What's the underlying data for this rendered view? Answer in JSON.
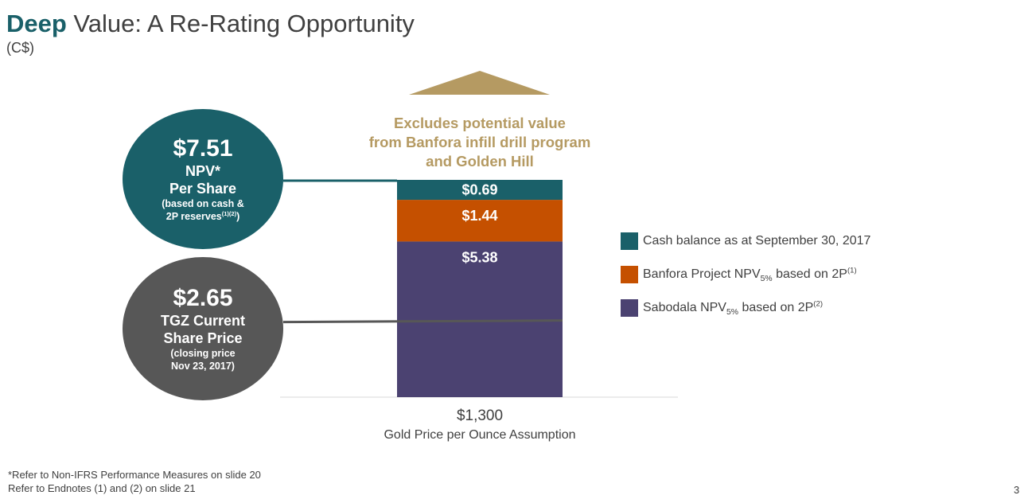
{
  "header": {
    "title_bold": "Deep",
    "title_rest": " Value: A Re-Rating Opportunity",
    "currency": "(C$)"
  },
  "npv_circle": {
    "value": "$7.51",
    "line1": "NPV*",
    "line2": "Per Share",
    "note1": "(based on cash &",
    "note2_main": "2P reserves",
    "note2_sup": "(1)(2)",
    "note2_end": ")"
  },
  "price_circle": {
    "value": "$2.65",
    "line1": "TGZ Current",
    "line2": "Share Price",
    "note1": "(closing price",
    "note2": "Nov 23, 2017)"
  },
  "callout": {
    "line1": "Excludes potential value",
    "line2": "from Banfora infill drill program",
    "line3": "and Golden Hill"
  },
  "chart_data": {
    "type": "bar",
    "stacked": true,
    "title": "",
    "categories": [
      "$1,300"
    ],
    "xlabel": "Gold Price per Ounce Assumption",
    "ylabel": "",
    "ylim": [
      0,
      7.51
    ],
    "series": [
      {
        "name": "Sabodala NPV5% based on 2P(2)",
        "values": [
          5.38
        ],
        "label": "$5.38",
        "color": "#4b4271"
      },
      {
        "name": "Banfora Project NPV5% based on 2P(1)",
        "values": [
          1.44
        ],
        "label": "$1.44",
        "color": "#c55000"
      },
      {
        "name": "Cash balance as at September 30, 2017",
        "values": [
          0.69
        ],
        "label": "$0.69",
        "color": "#1a6069"
      }
    ],
    "reference_lines": [
      {
        "name": "NPV per share",
        "value": 7.51
      },
      {
        "name": "TGZ current share price",
        "value": 2.65
      }
    ]
  },
  "legend": {
    "cash": "Cash balance as at September 30, 2017",
    "banfora_pre": "Banfora Project NPV",
    "banfora_sub": "5%",
    "banfora_post": " based on 2P",
    "banfora_sup": "(1)",
    "sabodala_pre": "Sabodala NPV",
    "sabodala_sub": "5%",
    "sabodala_post": " based on 2P",
    "sabodala_sup": "(2)"
  },
  "colors": {
    "teal": "#1a6069",
    "orange": "#c55000",
    "purple": "#4b4271",
    "gold": "#b59a62",
    "gray": "#575757"
  },
  "footer": {
    "note1": "*Refer to Non-IFRS Performance Measures on slide 20",
    "note2": "Refer to Endnotes (1) and (2) on slide 21",
    "page": "3"
  }
}
